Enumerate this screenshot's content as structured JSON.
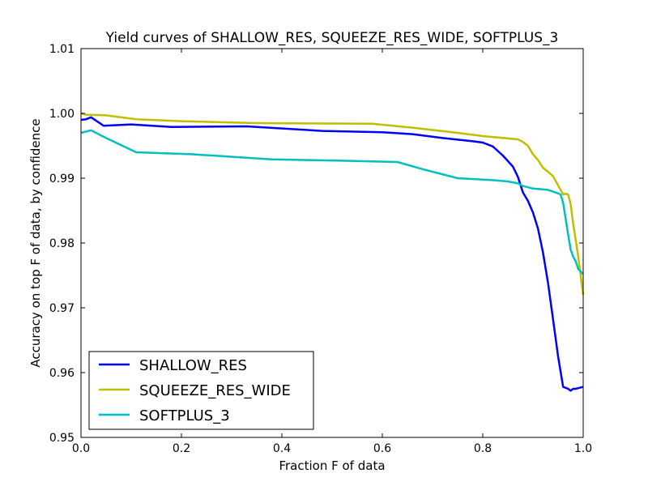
{
  "chart_data": {
    "type": "line",
    "title": "Yield curves of SHALLOW_RES, SQUEEZE_RES_WIDE, SOFTPLUS_3",
    "xlabel": "Fraction F of data",
    "ylabel": "Accuracy on top F of data, by confidence",
    "xlim": [
      0.0,
      1.0
    ],
    "ylim": [
      0.95,
      1.01
    ],
    "xticks": [
      "0.0",
      "0.2",
      "0.4",
      "0.6",
      "0.8",
      "1.0"
    ],
    "yticks": [
      "0.95",
      "0.96",
      "0.97",
      "0.98",
      "0.99",
      "1.00",
      "1.01"
    ],
    "grid": false,
    "legend_position": "lower-left",
    "series": [
      {
        "name": "SHALLOW_RES",
        "color": "#0000ff",
        "x": [
          0.0,
          0.01,
          0.02,
          0.045,
          0.1,
          0.18,
          0.33,
          0.48,
          0.6,
          0.66,
          0.72,
          0.78,
          0.8,
          0.82,
          0.84,
          0.86,
          0.87,
          0.88,
          0.89,
          0.9,
          0.91,
          0.92,
          0.93,
          0.94,
          0.95,
          0.96,
          0.97,
          0.975,
          0.98,
          0.985,
          0.99,
          1.0
        ],
        "y": [
          0.999,
          0.9991,
          0.9994,
          0.9981,
          0.9983,
          0.9979,
          0.998,
          0.9973,
          0.9971,
          0.9968,
          0.9962,
          0.9957,
          0.9955,
          0.9949,
          0.9935,
          0.9918,
          0.9902,
          0.9878,
          0.9865,
          0.9847,
          0.9822,
          0.9785,
          0.9738,
          0.9682,
          0.9625,
          0.9578,
          0.9575,
          0.9572,
          0.9575,
          0.9575,
          0.9576,
          0.9578
        ]
      },
      {
        "name": "SQUEEZE_RES_WIDE",
        "color": "#bfbf00",
        "x": [
          0.0,
          0.01,
          0.05,
          0.11,
          0.2,
          0.35,
          0.58,
          0.66,
          0.75,
          0.8,
          0.87,
          0.88,
          0.89,
          0.9,
          0.91,
          0.92,
          0.93,
          0.94,
          0.95,
          0.96,
          0.965,
          0.97,
          0.975,
          0.98,
          0.99,
          1.0
        ],
        "y": [
          1.0,
          0.9998,
          0.9997,
          0.9991,
          0.9988,
          0.9985,
          0.9984,
          0.9978,
          0.997,
          0.9965,
          0.996,
          0.9956,
          0.995,
          0.9937,
          0.9928,
          0.9916,
          0.991,
          0.9903,
          0.9889,
          0.9875,
          0.9876,
          0.9875,
          0.986,
          0.983,
          0.978,
          0.972
        ]
      },
      {
        "name": "SOFTPLUS_3",
        "color": "#00bfbf",
        "x": [
          0.0,
          0.01,
          0.02,
          0.05,
          0.11,
          0.22,
          0.38,
          0.52,
          0.63,
          0.68,
          0.75,
          0.82,
          0.85,
          0.87,
          0.88,
          0.9,
          0.93,
          0.945,
          0.955,
          0.96,
          0.965,
          0.97,
          0.975,
          0.98,
          0.985,
          0.99,
          1.0
        ],
        "y": [
          0.997,
          0.9972,
          0.9974,
          0.9962,
          0.994,
          0.9937,
          0.9929,
          0.9927,
          0.9925,
          0.9914,
          0.99,
          0.9897,
          0.9895,
          0.9892,
          0.9888,
          0.9884,
          0.9882,
          0.9878,
          0.9875,
          0.9862,
          0.9838,
          0.9813,
          0.979,
          0.9779,
          0.9772,
          0.976,
          0.9752
        ]
      }
    ]
  }
}
